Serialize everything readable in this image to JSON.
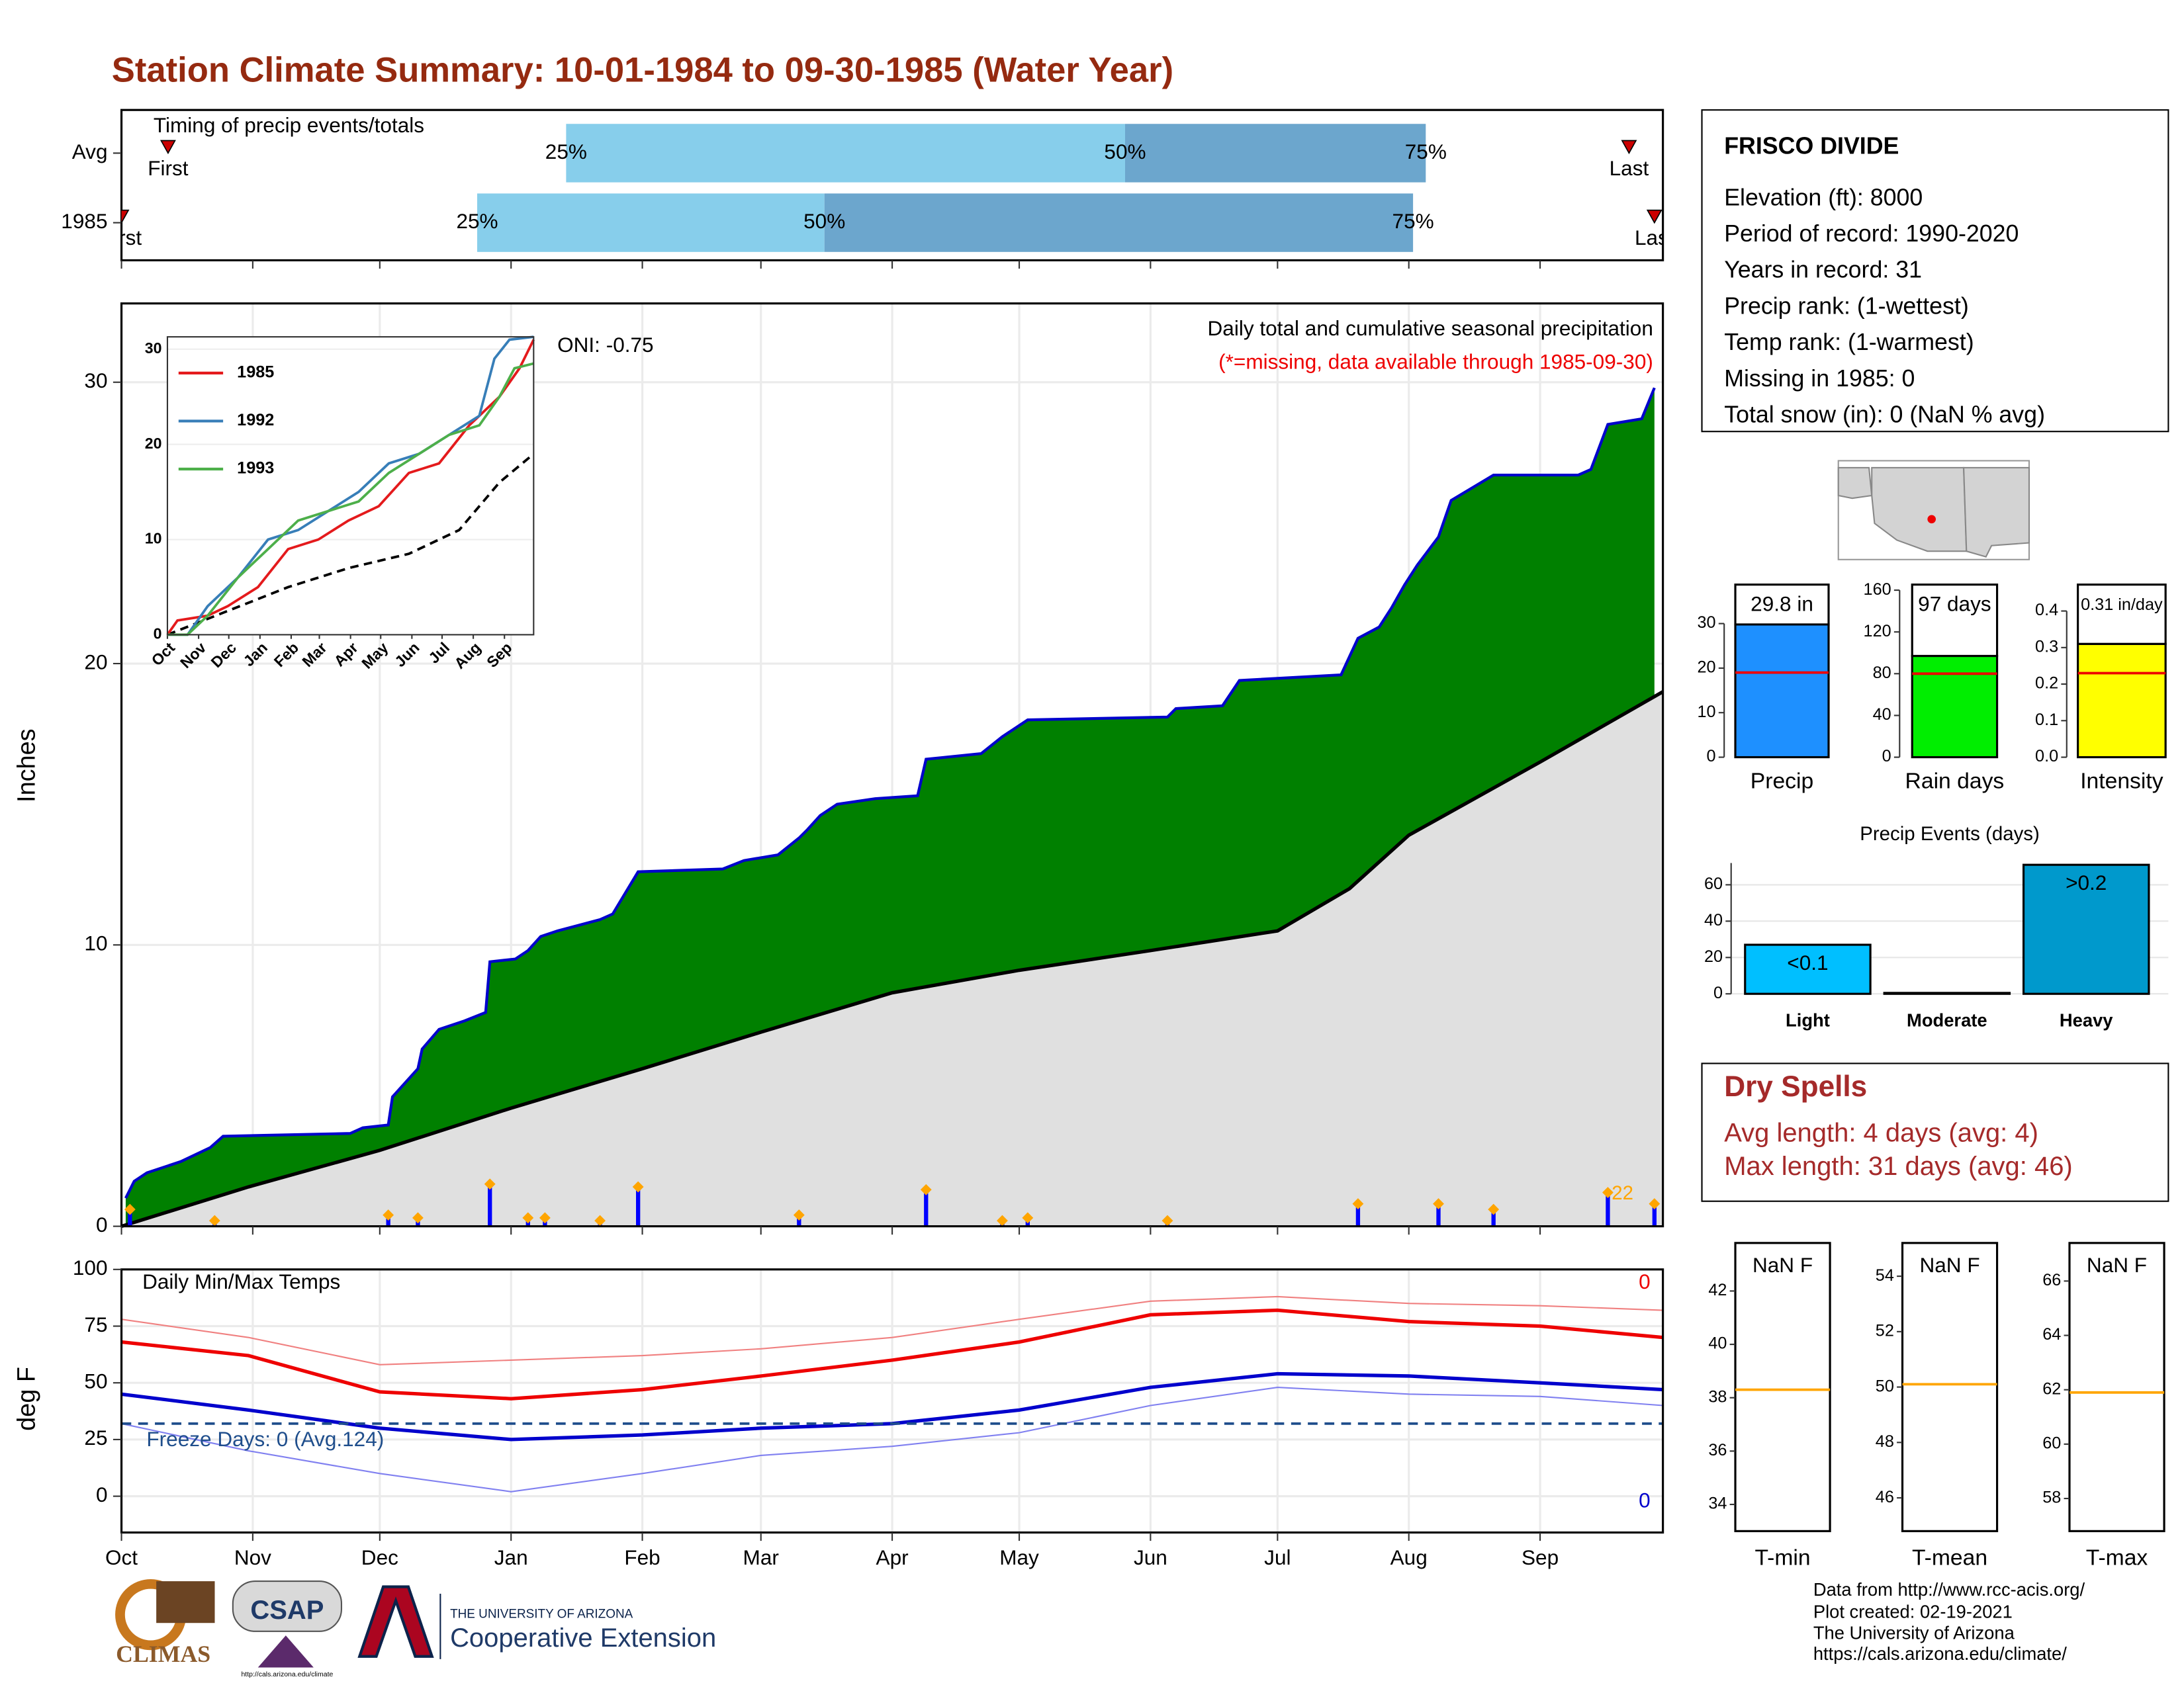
{
  "title": "Station Climate Summary: 10-01-1984 to 09-30-1985 (Water Year)",
  "station": {
    "name": "FRISCO DIVIDE",
    "lines": [
      "Elevation (ft): 8000",
      "Period of record: 1990-2020",
      "Years in record: 31",
      "Precip rank:  (1-wettest)",
      "Temp rank:  (1-warmest)",
      "Missing in 1985: 0",
      "Total snow (in): 0 (NaN % avg)"
    ]
  },
  "dry_spells": {
    "title": "Dry Spells",
    "lines": [
      "Avg length: 4 days (avg: 4)",
      "Max length: 31 days (avg: 46)"
    ]
  },
  "footer": [
    "Data from http://www.rcc-acis.org/",
    "Plot created: 02-19-2021",
    "The University of Arizona",
    "https://cals.arizona.edu/climate/"
  ],
  "logos": {
    "climas": "CLIMAS",
    "csap": "CSAP",
    "csap_url": "http://cals.arizona.edu/climate",
    "university": "THE UNIVERSITY OF ARIZONA",
    "extension": "Cooperative Extension"
  },
  "chart_data": [
    {
      "type": "timing",
      "title": "Timing of precip events/totals",
      "xlim": [
        0,
        364
      ],
      "labels": {
        "first": "First",
        "q25": "25%",
        "q50": "50%",
        "q75": "75%",
        "last": "Last"
      },
      "colors": {
        "q25_q50": "#87ceeb",
        "q50_q75": "#6ca6cd",
        "marker": "#cc0000"
      },
      "rows": [
        {
          "name": "Avg",
          "first": 11,
          "q25": 105,
          "q50": 237,
          "q75": 308,
          "last": 356
        },
        {
          "name": "1985",
          "first": 0,
          "q25": 84,
          "q50": 166,
          "q75": 305,
          "last": 362
        }
      ]
    },
    {
      "type": "cumulative",
      "title": "Daily total and cumulative seasonal precipitation",
      "subtitle": "(*=missing, data available through 1985-09-30)",
      "annotations": [
        "ONI: -0.75",
        "22"
      ],
      "ylabel": "Inches",
      "xlim": [
        0,
        364
      ],
      "ylim": [
        0,
        32.8
      ],
      "yticks": [
        0,
        10,
        20,
        30
      ],
      "xticks": [
        {
          "value": 0,
          "label": "Oct"
        },
        {
          "value": 31,
          "label": "Nov"
        },
        {
          "value": 61,
          "label": "Dec"
        },
        {
          "value": 92,
          "label": "Jan"
        },
        {
          "value": 123,
          "label": "Feb"
        },
        {
          "value": 151,
          "label": "Mar"
        },
        {
          "value": 182,
          "label": "Apr"
        },
        {
          "value": 212,
          "label": "May"
        },
        {
          "value": 243,
          "label": "Jun"
        },
        {
          "value": 273,
          "label": "Jul"
        },
        {
          "value": 304,
          "label": "Aug"
        },
        {
          "value": 335,
          "label": "Sep"
        }
      ],
      "grid": true,
      "colors": {
        "cumulative": "#0000cc",
        "above_average": "#008000",
        "average": "#e0e0e0",
        "daily": "#0000ff",
        "marker": "#ffa500"
      },
      "cumulative": {
        "x": [
          1,
          3,
          6,
          14,
          21,
          24,
          54,
          57,
          63,
          64,
          70,
          71,
          75,
          81,
          86,
          87,
          93,
          96,
          99,
          103,
          113,
          116,
          122,
          142,
          147,
          155,
          160,
          162,
          165,
          169,
          178,
          188,
          190,
          203,
          208,
          214,
          247,
          249,
          260,
          264,
          288,
          292,
          297,
          300,
          303,
          306,
          311,
          314,
          324,
          344,
          347,
          351,
          359,
          362
        ],
        "values": [
          1.0,
          1.6,
          1.9,
          2.3,
          2.8,
          3.2,
          3.3,
          3.5,
          3.6,
          4.6,
          5.6,
          6.3,
          7.0,
          7.3,
          7.6,
          9.4,
          9.5,
          9.8,
          10.3,
          10.5,
          10.9,
          11.1,
          12.6,
          12.7,
          13.0,
          13.2,
          13.8,
          14.1,
          14.6,
          15.0,
          15.2,
          15.3,
          16.6,
          16.8,
          17.4,
          18.0,
          18.1,
          18.4,
          18.5,
          19.4,
          19.6,
          20.9,
          21.3,
          22.0,
          22.8,
          23.5,
          24.5,
          25.8,
          26.7,
          26.7,
          26.9,
          28.5,
          28.7,
          29.8
        ]
      },
      "average": {
        "x": [
          0,
          30,
          61,
          92,
          123,
          151,
          182,
          212,
          243,
          273,
          290,
          304,
          335,
          364
        ],
        "values": [
          0,
          1.4,
          2.7,
          4.2,
          5.6,
          6.9,
          8.3,
          9.1,
          9.8,
          10.5,
          12,
          13.9,
          16.5,
          19.0
        ]
      },
      "daily": {
        "x": [
          2,
          22,
          63,
          70,
          87,
          96,
          100,
          113,
          122,
          160,
          190,
          208,
          214,
          247,
          292,
          311,
          324,
          351,
          362
        ],
        "values": [
          0.6,
          0.2,
          0.4,
          0.3,
          1.5,
          0.3,
          0.3,
          0.2,
          1.4,
          0.4,
          1.3,
          0.2,
          0.3,
          0.2,
          0.8,
          0.8,
          0.6,
          1.2,
          0.8
        ]
      }
    },
    {
      "type": "line",
      "xlim": [
        0,
        364
      ],
      "ylim": [
        0,
        31.3
      ],
      "yticks": [
        0,
        10,
        20,
        30
      ],
      "xticks": [
        {
          "value": 0,
          "label": "Oct"
        },
        {
          "value": 31,
          "label": "Nov"
        },
        {
          "value": 61,
          "label": "Dec"
        },
        {
          "value": 92,
          "label": "Jan"
        },
        {
          "value": 123,
          "label": "Feb"
        },
        {
          "value": 151,
          "label": "Mar"
        },
        {
          "value": 182,
          "label": "Apr"
        },
        {
          "value": 212,
          "label": "May"
        },
        {
          "value": 243,
          "label": "Jun"
        },
        {
          "value": 273,
          "label": "Jul"
        },
        {
          "value": 304,
          "label": "Aug"
        },
        {
          "value": 335,
          "label": "Sep"
        }
      ],
      "series": [
        {
          "name": "1985",
          "color": "#e41a1c",
          "x": [
            0,
            10,
            40,
            60,
            90,
            120,
            150,
            180,
            210,
            240,
            270,
            300,
            330,
            350,
            364
          ],
          "values": [
            0,
            1.5,
            2,
            3,
            5,
            9,
            10,
            12,
            13.5,
            17,
            18,
            22,
            25,
            28,
            31
          ]
        },
        {
          "name": "1992",
          "color": "#377eb8",
          "x": [
            0,
            20,
            40,
            70,
            100,
            130,
            160,
            190,
            220,
            250,
            280,
            310,
            325,
            340,
            364
          ],
          "values": [
            0,
            0,
            3,
            6,
            10,
            11,
            13,
            15,
            18,
            19,
            21,
            23,
            29,
            31,
            31.3
          ]
        },
        {
          "name": "1993",
          "color": "#4daf4a",
          "x": [
            0,
            20,
            40,
            70,
            100,
            130,
            160,
            190,
            220,
            250,
            280,
            310,
            330,
            345,
            364
          ],
          "values": [
            0,
            0,
            2,
            6,
            9,
            12,
            13,
            14,
            17,
            19,
            21,
            22,
            25,
            28,
            28.5
          ]
        }
      ],
      "average": {
        "color": "#000000",
        "x": [
          0,
          60,
          120,
          180,
          240,
          290,
          330,
          364
        ],
        "values": [
          0,
          2.5,
          5,
          7,
          8.5,
          11,
          16,
          19
        ]
      }
    },
    {
      "type": "line",
      "title": "Daily Min/Max Temps",
      "ylabel": "deg F",
      "annotations": [
        "Freeze Days: 0 (Avg.124)"
      ],
      "max_label": "0",
      "min_label": "0",
      "xlim": [
        0,
        364
      ],
      "ylim": [
        -16,
        100
      ],
      "yticks": [
        0,
        25,
        50,
        75,
        100
      ],
      "xticks": [
        {
          "value": 0,
          "label": "Oct"
        },
        {
          "value": 31,
          "label": "Nov"
        },
        {
          "value": 61,
          "label": "Dec"
        },
        {
          "value": 92,
          "label": "Jan"
        },
        {
          "value": 123,
          "label": "Feb"
        },
        {
          "value": 151,
          "label": "Mar"
        },
        {
          "value": 182,
          "label": "Apr"
        },
        {
          "value": 212,
          "label": "May"
        },
        {
          "value": 243,
          "label": "Jun"
        },
        {
          "value": 273,
          "label": "Jul"
        },
        {
          "value": 304,
          "label": "Aug"
        },
        {
          "value": 335,
          "label": "Sep"
        }
      ],
      "grid": true,
      "freeze_line": 32,
      "freeze_color": "#1f4e8c",
      "series": [
        {
          "color": "#f08080",
          "width": 1,
          "x": [
            0,
            30,
            61,
            92,
            123,
            151,
            182,
            212,
            243,
            273,
            304,
            335,
            364
          ],
          "values": [
            78,
            70,
            58,
            60,
            62,
            65,
            70,
            78,
            86,
            88,
            85,
            84,
            82
          ]
        },
        {
          "color": "#8080f0",
          "width": 1,
          "x": [
            0,
            30,
            61,
            92,
            123,
            151,
            182,
            212,
            243,
            273,
            304,
            335,
            364
          ],
          "values": [
            32,
            20,
            10,
            2,
            10,
            18,
            22,
            28,
            40,
            48,
            45,
            44,
            40
          ]
        },
        {
          "color": "#ee0000",
          "width": 2.5,
          "x": [
            0,
            30,
            61,
            92,
            123,
            151,
            182,
            212,
            243,
            273,
            304,
            335,
            364
          ],
          "values": [
            68,
            62,
            46,
            43,
            47,
            53,
            60,
            68,
            80,
            82,
            77,
            75,
            70
          ]
        },
        {
          "color": "#0000cc",
          "width": 2.5,
          "x": [
            0,
            30,
            61,
            92,
            123,
            151,
            182,
            212,
            243,
            273,
            304,
            335,
            364
          ],
          "values": [
            45,
            38,
            30,
            25,
            27,
            30,
            32,
            38,
            48,
            54,
            53,
            50,
            47
          ]
        }
      ]
    },
    {
      "type": "summary_bar",
      "category": "Precip",
      "value": 29.8,
      "value_label": "29.8 in",
      "average": 19,
      "ylim": [
        0,
        37.5
      ],
      "yticks": [
        0,
        10,
        20,
        30
      ],
      "color": "#1e90ff"
    },
    {
      "type": "summary_bar",
      "category": "Rain days",
      "value": 97,
      "value_label": "97 days",
      "average": 80,
      "ylim": [
        0,
        160
      ],
      "yticks": [
        0,
        40,
        80,
        120,
        160
      ],
      "color": "#00ee00"
    },
    {
      "type": "summary_bar",
      "category": "Intensity",
      "value": 0.31,
      "value_label": "0.31 in/day",
      "average": 0.23,
      "ylim": [
        0,
        0.457
      ],
      "yticks": [
        {
          "value": 0,
          "label": "0.0"
        },
        0.1,
        0.2,
        0.3,
        0.4
      ],
      "color": "#ffff00"
    },
    {
      "type": "bar",
      "title": "Precip Events (days)",
      "categories": [
        "Light",
        "Moderate",
        "Heavy"
      ],
      "values": [
        27,
        0.5,
        71
      ],
      "bin_labels": [
        "<0.1",
        null,
        ">0.2"
      ],
      "colors": [
        "#00bfff",
        "#333333",
        "#0099cc"
      ],
      "ylim": [
        0,
        72
      ],
      "yticks": [
        0,
        20,
        40,
        60
      ],
      "grid": true
    },
    {
      "type": "box_summary",
      "category": "T-min",
      "value_label": "NaN F",
      "average": 38.3,
      "ylim": [
        33,
        43.8
      ],
      "yticks": [
        34,
        36,
        38,
        40,
        42
      ],
      "color": "#ffa500"
    },
    {
      "type": "box_summary",
      "category": "T-mean",
      "value_label": "NaN F",
      "average": 50.1,
      "ylim": [
        44.8,
        55.2
      ],
      "yticks": [
        46,
        48,
        50,
        52,
        54
      ],
      "color": "#ffa500"
    },
    {
      "type": "box_summary",
      "category": "T-max",
      "value_label": "NaN F",
      "average": 61.9,
      "ylim": [
        56.8,
        67.4
      ],
      "yticks": [
        58,
        60,
        62,
        64,
        66
      ],
      "color": "#ffa500"
    }
  ]
}
